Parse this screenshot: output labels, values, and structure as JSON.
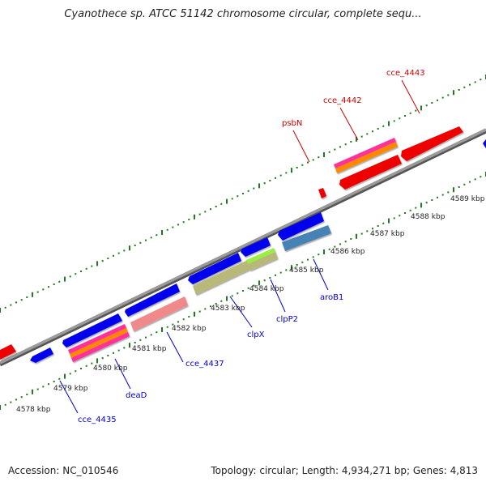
{
  "title": "Cyanothece sp. ATCC 51142 chromosome circular, complete sequ...",
  "footer": {
    "accession": "Accession: NC_010546",
    "topology": "Topology: circular; Length: 4,934,271 bp; Genes: 4,813"
  },
  "colors": {
    "backbone": "#888888",
    "ticks": "#1f7a1f",
    "label_forward": "#cc0000",
    "label_reverse": "#0000cc"
  },
  "scale_labels": [
    "4578 kbp",
    "4579 kbp",
    "4580 kbp",
    "4581 kbp",
    "4582 kbp",
    "4583 kbp",
    "4584 kbp",
    "4585 kbp",
    "4586 kbp",
    "4587 kbp",
    "4588 kbp",
    "4589 kbp"
  ],
  "gene_labels": [
    {
      "text": "cce_4443",
      "strand": "forward"
    },
    {
      "text": "cce_4442",
      "strand": "forward"
    },
    {
      "text": "psbN",
      "strand": "forward"
    },
    {
      "text": "aroB1",
      "strand": "reverse"
    },
    {
      "text": "clpP2",
      "strand": "reverse"
    },
    {
      "text": "clpX",
      "strand": "reverse"
    },
    {
      "text": "cce_4437",
      "strand": "reverse"
    },
    {
      "text": "deaD",
      "strand": "reverse"
    },
    {
      "text": "cce_4435",
      "strand": "reverse"
    }
  ]
}
